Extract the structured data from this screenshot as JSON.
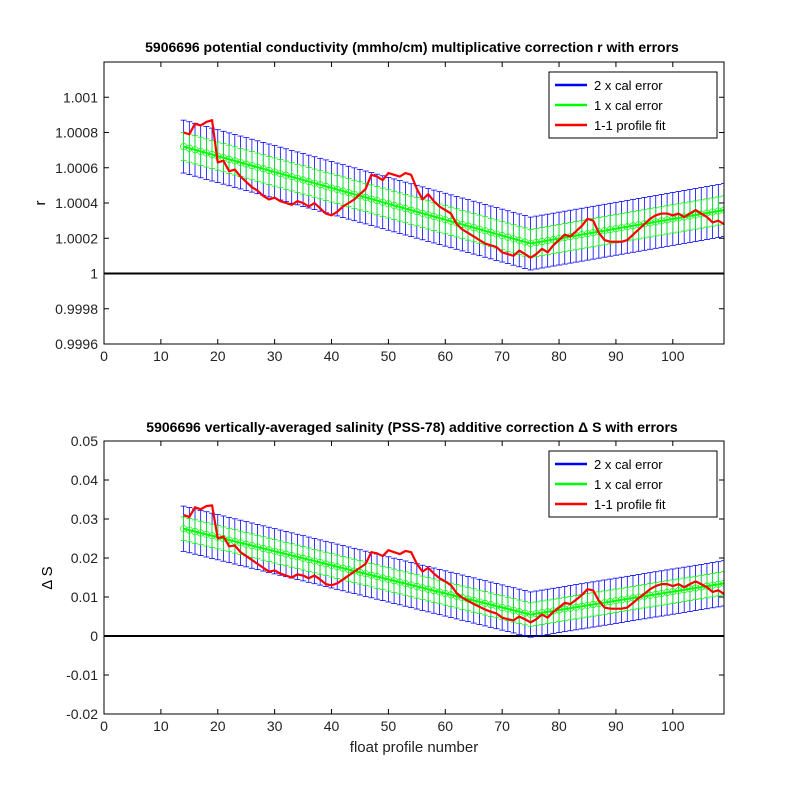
{
  "chart_data": [
    {
      "type": "line",
      "title": "5906696 potential conductivity (mmho/cm) multiplicative correction r with errors",
      "xlabel": "",
      "ylabel": "r",
      "xlim": [
        0,
        109
      ],
      "ylim": [
        0.9996,
        1.0012
      ],
      "xticks": [
        0,
        10,
        20,
        30,
        40,
        50,
        60,
        70,
        80,
        90,
        100
      ],
      "yticks": [
        0.9996,
        0.9998,
        1,
        1.0002,
        1.0004,
        1.0006,
        1.0008,
        1.001
      ],
      "ytick_labels": [
        "0.9996",
        "0.9998",
        "1",
        "1.0002",
        "1.0004",
        "1.0006",
        "1.0008",
        "1.001"
      ],
      "reference_line": 1,
      "legend_position": "top-right",
      "fit": {
        "x": [
          14,
          75,
          109
        ],
        "y": [
          1.00072,
          1.00017,
          1.00036
        ]
      },
      "error_1x": 8e-05,
      "error_2x": 0.00015,
      "series": [
        {
          "name": "2 x cal error",
          "color": "#0000ff"
        },
        {
          "name": "1 x cal error",
          "color": "#00ff00"
        },
        {
          "name": "1-1 profile fit",
          "color": "#ff0000",
          "x": [
            14,
            15,
            16,
            17,
            18,
            19,
            20,
            21,
            22,
            23,
            24,
            25,
            26,
            27,
            28,
            29,
            30,
            31,
            32,
            33,
            34,
            35,
            36,
            37,
            38,
            39,
            40,
            41,
            42,
            43,
            44,
            45,
            46,
            47,
            48,
            49,
            50,
            51,
            52,
            53,
            54,
            55,
            56,
            57,
            58,
            59,
            60,
            61,
            62,
            63,
            64,
            65,
            66,
            67,
            68,
            69,
            70,
            71,
            72,
            73,
            74,
            75,
            76,
            77,
            78,
            79,
            80,
            81,
            82,
            83,
            84,
            85,
            86,
            87,
            88,
            89,
            90,
            91,
            92,
            93,
            94,
            95,
            96,
            97,
            98,
            99,
            100,
            101,
            102,
            103,
            104,
            105,
            106,
            107,
            108,
            109
          ],
          "y": [
            1.0008,
            1.00079,
            1.00085,
            1.00084,
            1.00086,
            1.00087,
            1.00063,
            1.00064,
            1.00058,
            1.00059,
            1.00055,
            1.00052,
            1.00049,
            1.00047,
            1.00044,
            1.00042,
            1.00043,
            1.00041,
            1.0004,
            1.00039,
            1.00041,
            1.0004,
            1.00038,
            1.0004,
            1.00037,
            1.00034,
            1.00033,
            1.00035,
            1.00038,
            1.0004,
            1.00042,
            1.00045,
            1.00048,
            1.00056,
            1.00055,
            1.00053,
            1.00057,
            1.00056,
            1.00055,
            1.00057,
            1.00056,
            1.00048,
            1.00042,
            1.00045,
            1.00041,
            1.00038,
            1.00036,
            1.00034,
            1.00028,
            1.00025,
            1.00023,
            1.00021,
            1.00019,
            1.00017,
            1.00016,
            1.00015,
            1.00012,
            1.00011,
            1.0001,
            1.00013,
            1.00011,
            1.00009,
            1.00011,
            1.00014,
            1.00012,
            1.00016,
            1.00019,
            1.00022,
            1.00021,
            1.00024,
            1.00027,
            1.00031,
            1.0003,
            1.00023,
            1.00019,
            1.00018,
            1.00018,
            1.00018,
            1.00019,
            1.00022,
            1.00025,
            1.00028,
            1.00031,
            1.00033,
            1.00034,
            1.00034,
            1.00033,
            1.00034,
            1.00032,
            1.00034,
            1.00036,
            1.00034,
            1.00032,
            1.00029,
            1.0003,
            1.00028
          ]
        }
      ]
    },
    {
      "type": "line",
      "title": "5906696 vertically-averaged salinity (PSS-78) additive correction Δ S with errors",
      "xlabel": "float profile number",
      "ylabel": "Δ S",
      "xlim": [
        0,
        109
      ],
      "ylim": [
        -0.02,
        0.05
      ],
      "xticks": [
        0,
        10,
        20,
        30,
        40,
        50,
        60,
        70,
        80,
        90,
        100
      ],
      "yticks": [
        -0.02,
        -0.01,
        0,
        0.01,
        0.02,
        0.03,
        0.04,
        0.05
      ],
      "ytick_labels": [
        "-0.02",
        "-0.01",
        "0",
        "0.01",
        "0.02",
        "0.03",
        "0.04",
        "0.05"
      ],
      "reference_line": 0,
      "legend_position": "top-right",
      "fit": {
        "x": [
          14,
          75,
          109
        ],
        "y": [
          0.0275,
          0.0055,
          0.0135
        ]
      },
      "error_1x": 0.003,
      "error_2x": 0.0058,
      "series": [
        {
          "name": "2 x cal error",
          "color": "#0000ff"
        },
        {
          "name": "1 x cal error",
          "color": "#00ff00"
        },
        {
          "name": "1-1 profile fit",
          "color": "#ff0000",
          "x": [
            14,
            15,
            16,
            17,
            18,
            19,
            20,
            21,
            22,
            23,
            24,
            25,
            26,
            27,
            28,
            29,
            30,
            31,
            32,
            33,
            34,
            35,
            36,
            37,
            38,
            39,
            40,
            41,
            42,
            43,
            44,
            45,
            46,
            47,
            48,
            49,
            50,
            51,
            52,
            53,
            54,
            55,
            56,
            57,
            58,
            59,
            60,
            61,
            62,
            63,
            64,
            65,
            66,
            67,
            68,
            69,
            70,
            71,
            72,
            73,
            74,
            75,
            76,
            77,
            78,
            79,
            80,
            81,
            82,
            83,
            84,
            85,
            86,
            87,
            88,
            89,
            90,
            91,
            92,
            93,
            94,
            95,
            96,
            97,
            98,
            99,
            100,
            101,
            102,
            103,
            104,
            105,
            106,
            107,
            108,
            109
          ],
          "y": [
            0.031,
            0.0305,
            0.033,
            0.0325,
            0.0333,
            0.0335,
            0.025,
            0.0255,
            0.023,
            0.0232,
            0.0215,
            0.0205,
            0.0195,
            0.0185,
            0.0175,
            0.0165,
            0.0168,
            0.016,
            0.0155,
            0.015,
            0.0158,
            0.0155,
            0.0148,
            0.0155,
            0.0145,
            0.0133,
            0.013,
            0.0135,
            0.0145,
            0.0155,
            0.0165,
            0.0175,
            0.0185,
            0.0215,
            0.0212,
            0.0205,
            0.022,
            0.0215,
            0.021,
            0.0218,
            0.0215,
            0.0185,
            0.0165,
            0.0175,
            0.016,
            0.0148,
            0.014,
            0.013,
            0.011,
            0.0098,
            0.009,
            0.0082,
            0.0075,
            0.0068,
            0.0062,
            0.0058,
            0.0047,
            0.0043,
            0.004,
            0.005,
            0.0043,
            0.0035,
            0.0043,
            0.0055,
            0.0047,
            0.0062,
            0.0073,
            0.0085,
            0.0082,
            0.0093,
            0.0105,
            0.012,
            0.0117,
            0.009,
            0.0073,
            0.007,
            0.007,
            0.007,
            0.0073,
            0.0085,
            0.0097,
            0.0108,
            0.012,
            0.0128,
            0.0133,
            0.0133,
            0.0128,
            0.0133,
            0.0125,
            0.0133,
            0.014,
            0.0133,
            0.0125,
            0.0113,
            0.0117,
            0.0108
          ]
        }
      ]
    }
  ]
}
